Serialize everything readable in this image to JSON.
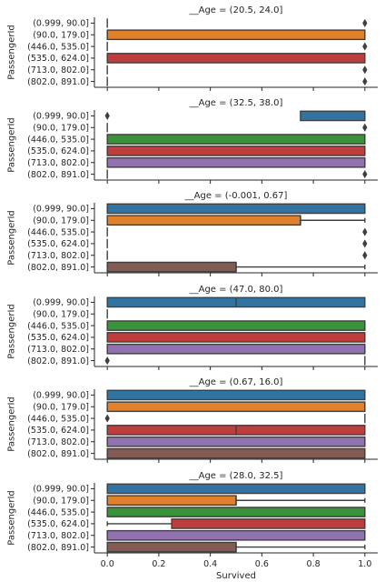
{
  "chart_data": {
    "type": "box",
    "orientation": "horizontal",
    "xlabel": "Survived",
    "ylabel": "PassengerId",
    "xlim": [
      -0.05,
      1.05
    ],
    "xticks": [
      0.0,
      0.2,
      0.4,
      0.6,
      0.8,
      1.0
    ],
    "xtick_labels": [
      "0.0",
      "0.2",
      "0.4",
      "0.6",
      "0.8",
      "1.0"
    ],
    "categories": [
      "(0.999, 90.0]",
      "(90.0, 179.0]",
      "(446.0, 535.0]",
      "(535.0, 624.0]",
      "(713.0, 802.0]",
      "(802.0, 891.0]"
    ],
    "colors": [
      "#3274a1",
      "#e1812c",
      "#3a923a",
      "#c03d3e",
      "#9372b2",
      "#845b53"
    ],
    "edge_color": "#3f3f3f",
    "facets": [
      {
        "title": "__Age = (20.5, 24.0]",
        "boxes": [
          {
            "q1": 0,
            "median": 0,
            "q3": 0,
            "whisker_low": 0,
            "whisker_high": 0,
            "fliers": [
              1
            ]
          },
          {
            "q1": 0,
            "median": 0,
            "q3": 1,
            "whisker_low": 0,
            "whisker_high": 1,
            "fliers": []
          },
          {
            "q1": 0,
            "median": 0,
            "q3": 0,
            "whisker_low": 0,
            "whisker_high": 0,
            "fliers": [
              1
            ]
          },
          {
            "q1": 0,
            "median": 0,
            "q3": 1,
            "whisker_low": 0,
            "whisker_high": 1,
            "fliers": []
          },
          {
            "q1": 0,
            "median": 0,
            "q3": 0,
            "whisker_low": 0,
            "whisker_high": 0,
            "fliers": [
              1
            ]
          },
          {
            "q1": 0,
            "median": 0,
            "q3": 0,
            "whisker_low": 0,
            "whisker_high": 0,
            "fliers": [
              1
            ]
          }
        ]
      },
      {
        "title": "__Age = (32.5, 38.0]",
        "boxes": [
          {
            "q1": 0.75,
            "median": 1,
            "q3": 1,
            "whisker_low": 0.75,
            "whisker_high": 1,
            "fliers": [
              0
            ]
          },
          {
            "q1": 0,
            "median": 0,
            "q3": 0,
            "whisker_low": 0,
            "whisker_high": 0,
            "fliers": [
              1
            ]
          },
          {
            "q1": 0,
            "median": 1,
            "q3": 1,
            "whisker_low": 0,
            "whisker_high": 1,
            "fliers": []
          },
          {
            "q1": 0,
            "median": 1,
            "q3": 1,
            "whisker_low": 0,
            "whisker_high": 1,
            "fliers": []
          },
          {
            "q1": 0,
            "median": 1,
            "q3": 1,
            "whisker_low": 0,
            "whisker_high": 1,
            "fliers": []
          },
          {
            "q1": 0,
            "median": 0,
            "q3": 0,
            "whisker_low": 0,
            "whisker_high": 0,
            "fliers": [
              1
            ]
          }
        ]
      },
      {
        "title": "__Age = (-0.001, 0.67]",
        "boxes": [
          {
            "q1": 0,
            "median": 1,
            "q3": 1,
            "whisker_low": 0,
            "whisker_high": 1,
            "fliers": []
          },
          {
            "q1": 0,
            "median": 0.75,
            "q3": 0.75,
            "whisker_low": 0,
            "whisker_high": 1,
            "fliers": []
          },
          {
            "q1": 0,
            "median": 0,
            "q3": 0,
            "whisker_low": 0,
            "whisker_high": 0,
            "fliers": [
              1
            ]
          },
          {
            "q1": 0,
            "median": 0,
            "q3": 0,
            "whisker_low": 0,
            "whisker_high": 0,
            "fliers": [
              1
            ]
          },
          {
            "q1": 0,
            "median": 0,
            "q3": 0,
            "whisker_low": 0,
            "whisker_high": 0,
            "fliers": [
              1
            ]
          },
          {
            "q1": 0,
            "median": 0.5,
            "q3": 0.5,
            "whisker_low": 0,
            "whisker_high": 1,
            "fliers": []
          }
        ]
      },
      {
        "title": "__Age = (47.0, 80.0]",
        "boxes": [
          {
            "q1": 0,
            "median": 0.5,
            "q3": 1,
            "whisker_low": 0,
            "whisker_high": 1,
            "fliers": []
          },
          {
            "q1": 0,
            "median": 0,
            "q3": 0,
            "whisker_low": 0,
            "whisker_high": 0,
            "fliers": []
          },
          {
            "q1": 0,
            "median": 1,
            "q3": 1,
            "whisker_low": 0,
            "whisker_high": 1,
            "fliers": []
          },
          {
            "q1": 0,
            "median": 1,
            "q3": 1,
            "whisker_low": 0,
            "whisker_high": 1,
            "fliers": []
          },
          {
            "q1": 0,
            "median": 1,
            "q3": 1,
            "whisker_low": 0,
            "whisker_high": 1,
            "fliers": []
          },
          {
            "q1": 1,
            "median": 1,
            "q3": 1,
            "whisker_low": 1,
            "whisker_high": 1,
            "fliers": [
              0
            ]
          }
        ]
      },
      {
        "title": "__Age = (0.67, 16.0]",
        "boxes": [
          {
            "q1": 0,
            "median": 1,
            "q3": 1,
            "whisker_low": 0,
            "whisker_high": 1,
            "fliers": []
          },
          {
            "q1": 0,
            "median": 1,
            "q3": 1,
            "whisker_low": 0,
            "whisker_high": 1,
            "fliers": []
          },
          {
            "q1": 1,
            "median": 1,
            "q3": 1,
            "whisker_low": 1,
            "whisker_high": 1,
            "fliers": [
              0
            ]
          },
          {
            "q1": 0,
            "median": 0.5,
            "q3": 1,
            "whisker_low": 0,
            "whisker_high": 1,
            "fliers": []
          },
          {
            "q1": 0,
            "median": 1,
            "q3": 1,
            "whisker_low": 0,
            "whisker_high": 1,
            "fliers": []
          },
          {
            "q1": 0,
            "median": 1,
            "q3": 1,
            "whisker_low": 0,
            "whisker_high": 1,
            "fliers": []
          }
        ]
      },
      {
        "title": "__Age = (28.0, 32.5]",
        "boxes": [
          {
            "q1": 0,
            "median": 1,
            "q3": 1,
            "whisker_low": 0,
            "whisker_high": 1,
            "fliers": []
          },
          {
            "q1": 0,
            "median": 0.5,
            "q3": 0.5,
            "whisker_low": 0,
            "whisker_high": 1,
            "fliers": []
          },
          {
            "q1": 0,
            "median": 1,
            "q3": 1,
            "whisker_low": 0,
            "whisker_high": 1,
            "fliers": []
          },
          {
            "q1": 0.25,
            "median": 1,
            "q3": 1,
            "whisker_low": 0,
            "whisker_high": 1,
            "fliers": []
          },
          {
            "q1": 0,
            "median": 1,
            "q3": 1,
            "whisker_low": 0,
            "whisker_high": 1,
            "fliers": []
          },
          {
            "q1": 0,
            "median": 0.5,
            "q3": 0.5,
            "whisker_low": 0,
            "whisker_high": 1,
            "fliers": []
          }
        ]
      }
    ]
  }
}
